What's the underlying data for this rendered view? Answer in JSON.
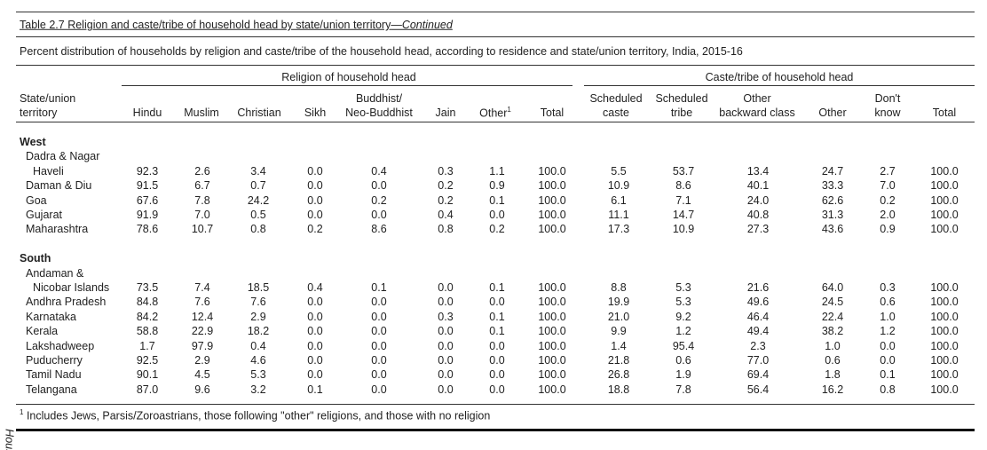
{
  "title": "Table 2.7 Religion and caste/tribe of household head by state/union territory",
  "title_suffix": "—Continued",
  "subtitle": "Percent distribution of households by religion and caste/tribe of the household head, according to residence and state/union territory, India, 2015-16",
  "group_headers": [
    "Religion of household head",
    "Caste/tribe of household head"
  ],
  "columns": [
    [
      "State/union",
      "territory"
    ],
    [
      "Hindu"
    ],
    [
      "Muslim"
    ],
    [
      "Christian"
    ],
    [
      "Sikh"
    ],
    [
      "Buddhist/",
      "Neo-Buddhist"
    ],
    [
      "Jain"
    ],
    [
      "Other"
    ],
    [
      "Total"
    ],
    [
      "Scheduled",
      "caste"
    ],
    [
      "Scheduled",
      "tribe"
    ],
    [
      "Other",
      "backward class"
    ],
    [
      "Other"
    ],
    [
      "Don't",
      "know"
    ],
    [
      "Total"
    ]
  ],
  "other_note_mark": "1",
  "sections": [
    {
      "name": "West",
      "rows": [
        {
          "state": [
            "Dadra & Nagar",
            "Haveli"
          ],
          "values": [
            "92.3",
            "2.6",
            "3.4",
            "0.0",
            "0.4",
            "0.3",
            "1.1",
            "100.0",
            "5.5",
            "53.7",
            "13.4",
            "24.7",
            "2.7",
            "100.0"
          ]
        },
        {
          "state": [
            "Daman & Diu"
          ],
          "values": [
            "91.5",
            "6.7",
            "0.7",
            "0.0",
            "0.0",
            "0.2",
            "0.9",
            "100.0",
            "10.9",
            "8.6",
            "40.1",
            "33.3",
            "7.0",
            "100.0"
          ]
        },
        {
          "state": [
            "Goa"
          ],
          "values": [
            "67.6",
            "7.8",
            "24.2",
            "0.0",
            "0.2",
            "0.2",
            "0.1",
            "100.0",
            "6.1",
            "7.1",
            "24.0",
            "62.6",
            "0.2",
            "100.0"
          ]
        },
        {
          "state": [
            "Gujarat"
          ],
          "values": [
            "91.9",
            "7.0",
            "0.5",
            "0.0",
            "0.0",
            "0.4",
            "0.0",
            "100.0",
            "11.1",
            "14.7",
            "40.8",
            "31.3",
            "2.0",
            "100.0"
          ]
        },
        {
          "state": [
            "Maharashtra"
          ],
          "values": [
            "78.6",
            "10.7",
            "0.8",
            "0.2",
            "8.6",
            "0.8",
            "0.2",
            "100.0",
            "17.3",
            "10.9",
            "27.3",
            "43.6",
            "0.9",
            "100.0"
          ]
        }
      ]
    },
    {
      "name": "South",
      "rows": [
        {
          "state": [
            "Andaman &",
            "Nicobar Islands"
          ],
          "values": [
            "73.5",
            "7.4",
            "18.5",
            "0.4",
            "0.1",
            "0.0",
            "0.1",
            "100.0",
            "8.8",
            "5.3",
            "21.6",
            "64.0",
            "0.3",
            "100.0"
          ]
        },
        {
          "state": [
            "Andhra Pradesh"
          ],
          "values": [
            "84.8",
            "7.6",
            "7.6",
            "0.0",
            "0.0",
            "0.0",
            "0.0",
            "100.0",
            "19.9",
            "5.3",
            "49.6",
            "24.5",
            "0.6",
            "100.0"
          ]
        },
        {
          "state": [
            "Karnataka"
          ],
          "values": [
            "84.2",
            "12.4",
            "2.9",
            "0.0",
            "0.0",
            "0.3",
            "0.1",
            "100.0",
            "21.0",
            "9.2",
            "46.4",
            "22.4",
            "1.0",
            "100.0"
          ]
        },
        {
          "state": [
            "Kerala"
          ],
          "values": [
            "58.8",
            "22.9",
            "18.2",
            "0.0",
            "0.0",
            "0.0",
            "0.1",
            "100.0",
            "9.9",
            "1.2",
            "49.4",
            "38.2",
            "1.2",
            "100.0"
          ]
        },
        {
          "state": [
            "Lakshadweep"
          ],
          "values": [
            "1.7",
            "97.9",
            "0.4",
            "0.0",
            "0.0",
            "0.0",
            "0.0",
            "100.0",
            "1.4",
            "95.4",
            "2.3",
            "1.0",
            "0.0",
            "100.0"
          ]
        },
        {
          "state": [
            "Puducherry"
          ],
          "values": [
            "92.5",
            "2.9",
            "4.6",
            "0.0",
            "0.0",
            "0.0",
            "0.0",
            "100.0",
            "21.8",
            "0.6",
            "77.0",
            "0.6",
            "0.0",
            "100.0"
          ]
        },
        {
          "state": [
            "Tamil Nadu"
          ],
          "values": [
            "90.1",
            "4.5",
            "5.3",
            "0.0",
            "0.0",
            "0.0",
            "0.0",
            "100.0",
            "26.8",
            "1.9",
            "69.4",
            "1.8",
            "0.1",
            "100.0"
          ]
        },
        {
          "state": [
            "Telangana"
          ],
          "values": [
            "87.0",
            "9.6",
            "3.2",
            "0.1",
            "0.0",
            "0.0",
            "0.0",
            "100.0",
            "18.8",
            "7.8",
            "56.4",
            "16.2",
            "0.8",
            "100.0"
          ]
        }
      ]
    }
  ],
  "footnote": {
    "mark": "1",
    "text": "Includes Jews, Parsis/Zoroastrians, those following \"other\" religions, and those with no religion"
  },
  "side_label": "House"
}
